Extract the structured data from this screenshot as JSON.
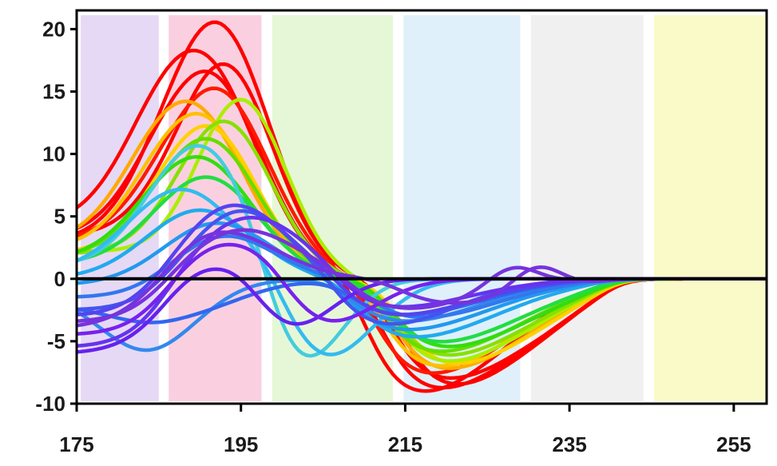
{
  "chart_data": {
    "type": "line",
    "title": "",
    "xlabel": "",
    "ylabel": "",
    "xlim": [
      175,
      259
    ],
    "ylim": [
      -10,
      21.5
    ],
    "x_ticks": [
      175,
      195,
      215,
      235,
      255
    ],
    "y_ticks": [
      20,
      15,
      10,
      5,
      0,
      -5,
      -10
    ],
    "x_tick_labels": [
      "175",
      "195",
      "215",
      "235",
      "255"
    ],
    "y_tick_labels": [
      "20",
      "15",
      "10",
      "5",
      "0",
      "-5",
      "-10"
    ],
    "grid": false,
    "legend": "none",
    "zero_line": true,
    "bands": [
      {
        "from": 175.5,
        "to": 185.0,
        "color": "#e6d9f5"
      },
      {
        "from": 186.2,
        "to": 197.5,
        "color": "#fad0e0"
      },
      {
        "from": 198.8,
        "to": 213.5,
        "color": "#e6f7d7"
      },
      {
        "from": 214.8,
        "to": 229.0,
        "color": "#dff0fa"
      },
      {
        "from": 230.3,
        "to": 244.0,
        "color": "#f0f0f0"
      },
      {
        "from": 245.3,
        "to": 258.8,
        "color": "#fafac8"
      }
    ],
    "series": [
      {
        "color": "#ff0000",
        "peak_x": 192,
        "peak": 20.3,
        "w": 6.5,
        "base": 3.0,
        "tmin_x": 216,
        "tmin": -9.3,
        "tw": 11
      },
      {
        "color": "#ff0000",
        "peak_x": 190,
        "peak": 17.5,
        "w": 6.8,
        "base": 4.2,
        "tmin_x": 218,
        "tmin": -9.0,
        "tw": 12
      },
      {
        "color": "#ff0000",
        "peak_x": 193,
        "peak": 17.0,
        "w": 6.0,
        "base": 3.5,
        "tmin_x": 220,
        "tmin": -8.7,
        "tw": 11
      },
      {
        "color": "#ff0000",
        "peak_x": 191,
        "peak": 16.2,
        "w": 6.5,
        "base": 3.3,
        "tmin_x": 219,
        "tmin": -8.2,
        "tw": 12
      },
      {
        "color": "#ff1a00",
        "peak_x": 192,
        "peak": 15.0,
        "w": 6.5,
        "base": 3.0,
        "tmin_x": 217,
        "tmin": -7.8,
        "tw": 11
      },
      {
        "color": "#ffaa00",
        "peak_x": 189,
        "peak": 13.5,
        "w": 6.5,
        "base": 2.8,
        "tmin_x": 219,
        "tmin": -7.4,
        "tw": 11
      },
      {
        "color": "#ffc000",
        "peak_x": 190,
        "peak": 12.8,
        "w": 6.3,
        "base": 2.4,
        "tmin_x": 218,
        "tmin": -7.2,
        "tw": 11
      },
      {
        "color": "#ffd000",
        "peak_x": 191,
        "peak": 12.0,
        "w": 6.0,
        "base": 2.0,
        "tmin_x": 220,
        "tmin": -7.0,
        "tw": 11
      },
      {
        "color": "#aaee00",
        "peak_x": 195,
        "peak": 14.3,
        "w": 5.5,
        "base": 2.2,
        "tmin_x": 219,
        "tmin": -6.8,
        "tw": 11
      },
      {
        "color": "#88e000",
        "peak_x": 193,
        "peak": 12.5,
        "w": 5.8,
        "base": 2.0,
        "tmin_x": 219,
        "tmin": -6.3,
        "tw": 11
      },
      {
        "color": "#66dd00",
        "peak_x": 191,
        "peak": 11.0,
        "w": 6.2,
        "base": 1.8,
        "tmin_x": 218,
        "tmin": -6.0,
        "tw": 11
      },
      {
        "color": "#33dd11",
        "peak_x": 190,
        "peak": 9.5,
        "w": 6.5,
        "base": 1.5,
        "tmin_x": 219,
        "tmin": -5.6,
        "tw": 11
      },
      {
        "color": "#22dd44",
        "peak_x": 191,
        "peak": 8.0,
        "w": 6.3,
        "base": 1.2,
        "tmin_x": 218,
        "tmin": -5.2,
        "tw": 11
      },
      {
        "color": "#44ccdd",
        "peak_x": 190,
        "peak": 10.5,
        "w": 6.0,
        "base": 1.0,
        "tmin_x": 202,
        "tmin": -7.5,
        "tw": 5
      },
      {
        "color": "#33bbee",
        "peak_x": 188,
        "peak": 7.0,
        "w": 6.5,
        "base": 0.5,
        "tmin_x": 205,
        "tmin": -6.5,
        "tw": 6
      },
      {
        "color": "#22aaee",
        "peak_x": 190,
        "peak": 5.5,
        "w": 6.5,
        "base": 0.0,
        "tmin_x": 215,
        "tmin": -4.8,
        "tw": 11
      },
      {
        "color": "#2299ee",
        "peak_x": 192,
        "peak": 4.5,
        "w": 6.5,
        "base": -0.5,
        "tmin_x": 214,
        "tmin": -4.2,
        "tw": 11
      },
      {
        "color": "#3388ee",
        "peak_x": 184,
        "peak": -5.0,
        "w": 6.0,
        "base": -1.0,
        "tmin_x": 214,
        "tmin": -3.5,
        "tw": 10
      },
      {
        "color": "#3377ee",
        "peak_x": 193,
        "peak": 3.5,
        "w": 6.0,
        "base": -1.5,
        "tmin_x": 216,
        "tmin": -3.2,
        "tw": 10
      },
      {
        "color": "#3366ee",
        "peak_x": 188,
        "peak": -2.5,
        "w": 7.0,
        "base": -2.0,
        "tmin_x": 214,
        "tmin": -3.0,
        "tw": 10
      },
      {
        "color": "#4455ee",
        "peak_x": 195,
        "peak": 5.5,
        "w": 6.0,
        "base": -2.5,
        "tmin_x": 212,
        "tmin": -3.8,
        "tw": 9
      },
      {
        "color": "#5544ee",
        "peak_x": 194,
        "peak": 6.0,
        "w": 6.5,
        "base": -3.0,
        "tmin_x": 213,
        "tmin": -3.0,
        "tw": 10
      },
      {
        "color": "#6633ee",
        "peak_x": 196,
        "peak": 5.0,
        "w": 7.0,
        "base": -5.5,
        "tmin_x": 212,
        "tmin": -2.5,
        "tw": 10
      },
      {
        "color": "#6622ee",
        "peak_x": 190,
        "peak": 1.5,
        "w": 6.0,
        "base": -6.0,
        "tmin_x": 201,
        "tmin": -4.0,
        "tw": 5
      },
      {
        "color": "#7722ee",
        "peak_x": 193,
        "peak": 3.0,
        "w": 6.0,
        "base": -4.5,
        "tmin_x": 205,
        "tmin": -3.8,
        "tw": 6
      },
      {
        "color": "#7733dd",
        "peak_x": 192,
        "peak": 4.0,
        "w": 7.0,
        "base": -4.0,
        "tmin_x": 220,
        "tmin": -2.0,
        "tw": 10,
        "bump_x": 231,
        "bump": 2.0
      },
      {
        "color": "#7733dd",
        "peak_x": 195,
        "peak": 4.0,
        "w": 7.0,
        "base": -3.5,
        "tmin_x": 214,
        "tmin": -2.5,
        "tw": 9,
        "bump_x": 228,
        "bump": 1.6
      }
    ]
  }
}
